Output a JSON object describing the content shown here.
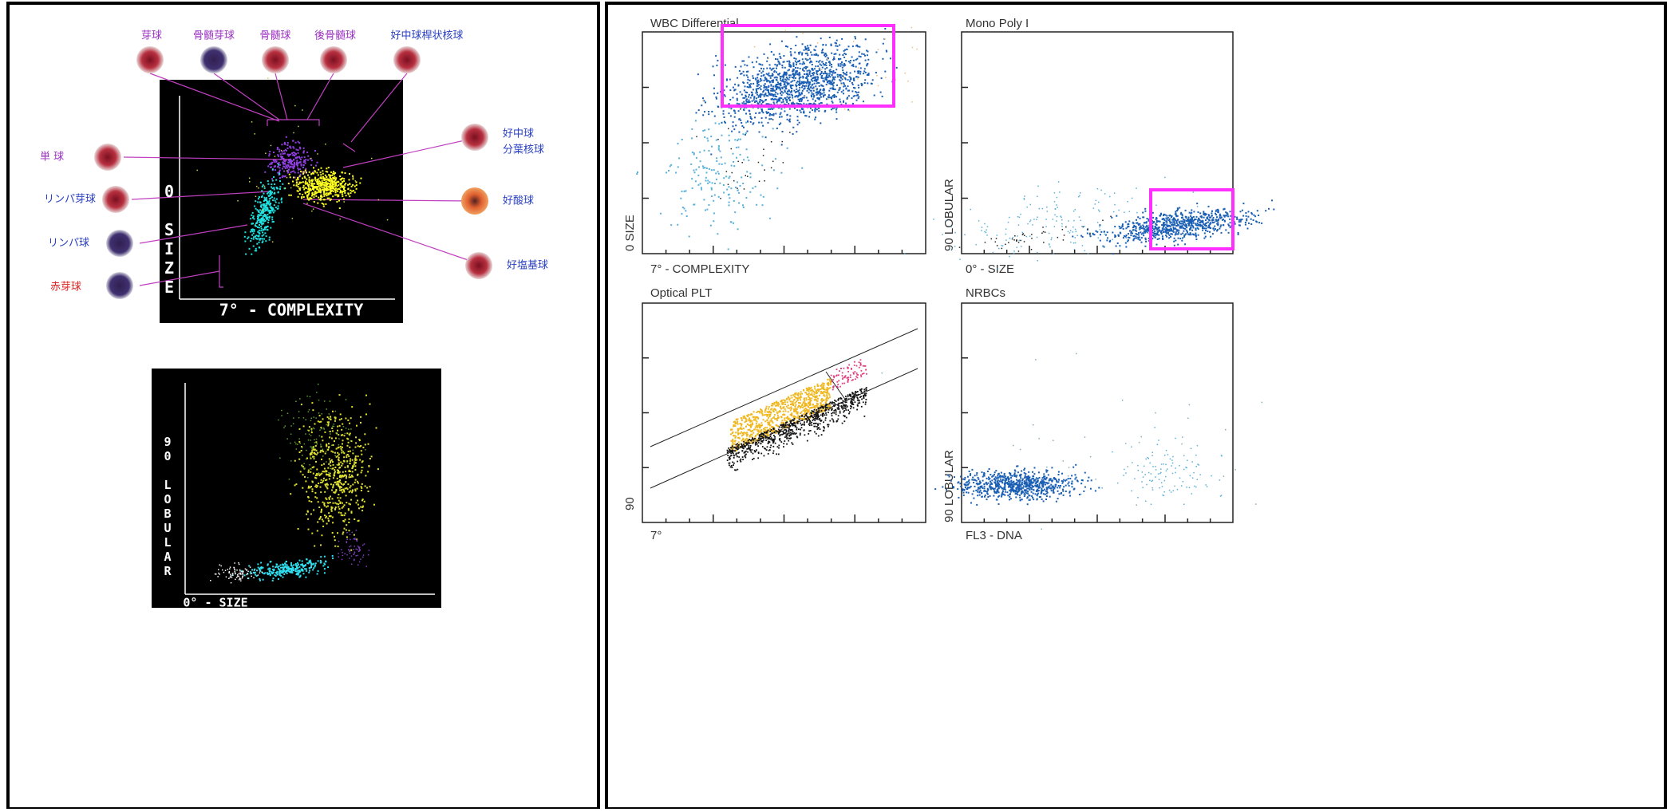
{
  "left": {
    "top_labels": [
      "芽球",
      "骨髄芽球",
      "骨髄球",
      "後骨髄球",
      "好中球桿状核球"
    ],
    "left_labels": [
      "単 球",
      "リンパ芽球",
      "リンパ球",
      "赤芽球"
    ],
    "right_labels": [
      "好中球",
      "分葉核球",
      "好酸球",
      "好塩基球"
    ],
    "plot1": {
      "y_label": "0 SIZE",
      "x_label": "7° - COMPLEXITY"
    },
    "plot2": {
      "y_label": "90 LOBULAR",
      "x_label": "0° - SIZE"
    }
  },
  "right": {
    "plots": [
      {
        "title": "WBC Differential",
        "y_label": "0 SIZE",
        "x_label": "7° - COMPLEXITY"
      },
      {
        "title": "Mono Poly I",
        "y_label": "90 LOBULAR",
        "x_label": "0° - SIZE"
      },
      {
        "title": "Optical PLT",
        "y_label": "90",
        "x_label": "7°"
      },
      {
        "title": "NRBCs",
        "y_label": "90 LOBULAR",
        "x_label": "FL3 - DNA"
      }
    ]
  }
}
